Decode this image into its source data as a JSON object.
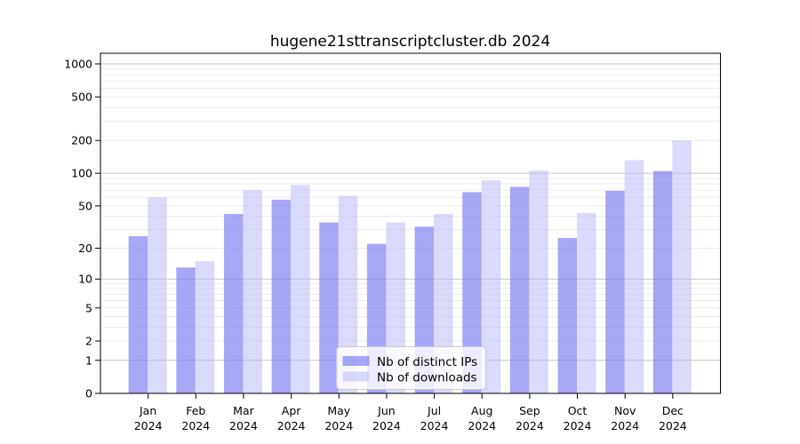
{
  "title": "hugene21sttranscriptcluster.db 2024",
  "legend": {
    "position": "lower-center",
    "items": [
      {
        "label": "Nb of distinct IPs"
      },
      {
        "label": "Nb of downloads"
      }
    ]
  },
  "y_axis": {
    "tick_labels": [
      "1000",
      "500",
      "200",
      "100",
      "50",
      "20",
      "10",
      "5",
      "2",
      "1",
      "0"
    ]
  },
  "x_axis": {
    "year_label": "2024",
    "months": [
      "Jan",
      "Feb",
      "Mar",
      "Apr",
      "May",
      "Jun",
      "Jul",
      "Aug",
      "Sep",
      "Oct",
      "Nov",
      "Dec"
    ]
  },
  "colors": {
    "ips_bar": "rgba(122,122,240,0.66)",
    "downloads_bar": "rgba(182,182,247,0.5)",
    "grid_major": "#c6c6c6",
    "grid_minor": "#ececec",
    "axis": "#000000",
    "legend_border": "#cccccc",
    "legend_bg": "#ffffff"
  },
  "chart_data": {
    "type": "bar",
    "title": "hugene21sttranscriptcluster.db 2024",
    "categories": [
      "Jan 2024",
      "Feb 2024",
      "Mar 2024",
      "Apr 2024",
      "May 2024",
      "Jun 2024",
      "Jul 2024",
      "Aug 2024",
      "Sep 2024",
      "Oct 2024",
      "Nov 2024",
      "Dec 2024"
    ],
    "series": [
      {
        "name": "Nb of distinct IPs",
        "color": "rgba(122,122,240,0.66)",
        "values": [
          26,
          13,
          42,
          57,
          35,
          22,
          32,
          67,
          75,
          25,
          69,
          105
        ]
      },
      {
        "name": "Nb of downloads",
        "color": "rgba(182,182,247,0.5)",
        "values": [
          60,
          15,
          70,
          78,
          62,
          35,
          42,
          86,
          106,
          43,
          132,
          200
        ]
      }
    ],
    "xlabel": "",
    "ylabel": "",
    "y_scale": "log1p",
    "y_ticks": [
      0,
      1,
      2,
      5,
      10,
      20,
      50,
      100,
      200,
      500,
      1000
    ],
    "grid_major_ticks": [
      1,
      10,
      100,
      1000
    ],
    "grid_minor_multipliers": [
      2,
      3,
      4,
      5,
      6,
      7,
      8,
      9
    ],
    "grid": "on",
    "legend_position": "lower center inside plot",
    "ylim": [
      0,
      1250
    ]
  }
}
